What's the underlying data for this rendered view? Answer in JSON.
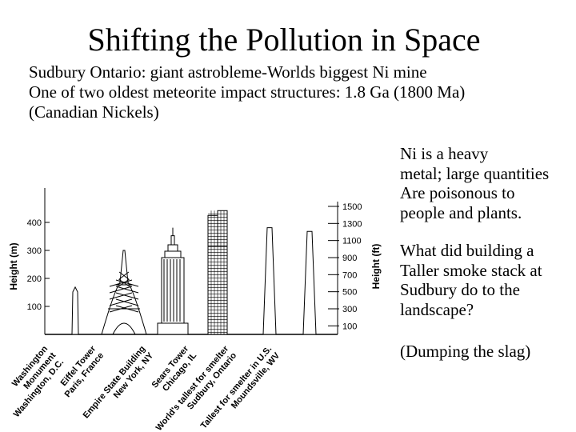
{
  "slide": {
    "title": "Shifting the Pollution in Space",
    "intro_lines": [
      "Sudbury Ontario: giant astrobleme-Worlds biggest Ni mine",
      "One of two oldest meteorite impact structures: 1.8 Ga (1800 Ma)",
      "(Canadian Nickels)"
    ],
    "side_paragraphs": [
      [
        "Ni is a heavy",
        "metal; large quantities",
        "Are poisonous to",
        "people and plants."
      ],
      [
        "What did building a",
        "Taller smoke stack at",
        "Sudbury do to the",
        "landscape?"
      ],
      [
        "(Dumping the slag)"
      ]
    ]
  },
  "figure": {
    "left_axis_label": "Height (m)",
    "left_ticks": [
      100,
      200,
      300,
      400
    ],
    "right_axis_label": "Height (ft)",
    "right_ticks": [
      100,
      300,
      500,
      700,
      900,
      1100,
      1300,
      1500
    ],
    "structures": [
      {
        "label_lines": [
          "Washington",
          "Monument",
          "Washington, D.C."
        ],
        "height_m": 169
      },
      {
        "label_lines": [
          "Eiffel Tower",
          "Paris, France"
        ],
        "height_m": 300
      },
      {
        "label_lines": [
          "Empire State Building",
          "New York, NY"
        ],
        "height_m": 381
      },
      {
        "label_lines": [
          "Sears Tower",
          "Chicago, IL"
        ],
        "height_m": 442
      },
      {
        "label_lines": [
          "World's tallest for smelter",
          "Sudbury, Ontario"
        ],
        "height_m": 381
      },
      {
        "label_lines": [
          "Tallest for smelter in U.S.",
          "Moundsville, WV"
        ],
        "height_m": 368
      }
    ]
  }
}
